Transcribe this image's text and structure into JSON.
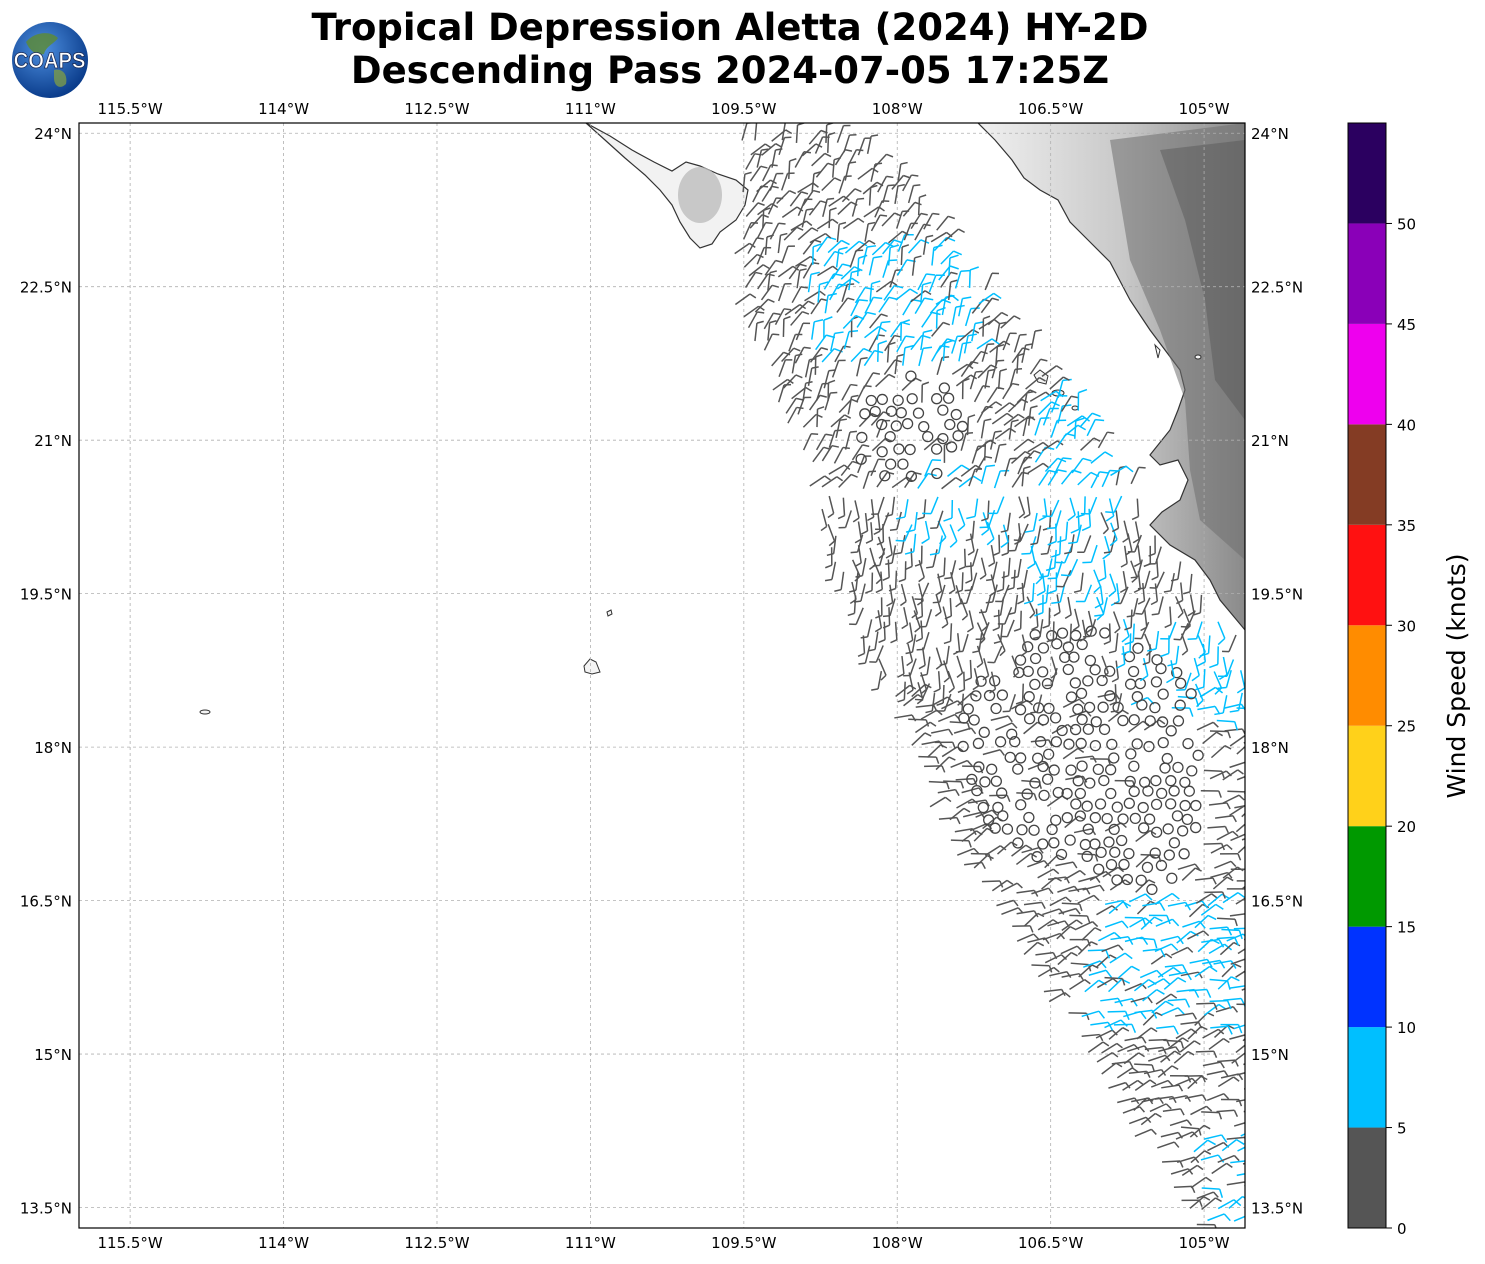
{
  "title_line1": "Tropical Depression Aletta (2024) HY-2D",
  "title_line2": "Descending Pass 2024-07-05 17:25Z",
  "logo_text": "COAPS",
  "chart_data": {
    "type": "wind-barb-map",
    "lon_range": [
      -116.0,
      -104.6
    ],
    "lat_range": [
      13.3,
      24.1
    ],
    "lon_ticks": [
      "115.5°W",
      "114°W",
      "112.5°W",
      "111°W",
      "109.5°W",
      "108°W",
      "106.5°W",
      "105°W"
    ],
    "lon_tick_values": [
      -115.5,
      -114.0,
      -112.5,
      -111.0,
      -109.5,
      -108.0,
      -106.5,
      -105.0
    ],
    "lat_ticks": [
      "24°N",
      "22.5°N",
      "21°N",
      "19.5°N",
      "18°N",
      "16.5°N",
      "15°N",
      "13.5°N"
    ],
    "lat_tick_values": [
      24.0,
      22.5,
      21.0,
      19.5,
      18.0,
      16.5,
      15.0,
      13.5
    ],
    "grid": true,
    "colorbar": {
      "label": "Wind Speed (knots)",
      "bounds": [
        0,
        5,
        10,
        15,
        20,
        25,
        30,
        35,
        40,
        45,
        50,
        55
      ],
      "tick_labels": [
        "0",
        "5",
        "10",
        "15",
        "20",
        "25",
        "30",
        "35",
        "40",
        "45",
        "50"
      ],
      "colors": [
        "#555555",
        "#00bfff",
        "#0033ff",
        "#009900",
        "#ffd11a",
        "#ff8c00",
        "#ff1111",
        "#843c24",
        "#ee00ee",
        "#8a00b8",
        "#2b0060"
      ]
    },
    "swath_lon_lat": [
      [
        -109.5,
        24.0
      ],
      [
        -108.3,
        24.0
      ],
      [
        -106.4,
        21.5
      ],
      [
        -104.6,
        19.0
      ],
      [
        -104.6,
        13.3
      ],
      [
        -105.1,
        13.3
      ],
      [
        -107.6,
        17.2
      ],
      [
        -109.6,
        22.4
      ]
    ],
    "wind_regions": [
      {
        "name": "central-gulf",
        "lon": [
          -108.9,
          -107.2
        ],
        "lat": [
          21.7,
          22.9
        ],
        "speed_class": "5-10"
      },
      {
        "name": "north-of-center",
        "lon": [
          -107.9,
          -106.9
        ],
        "lat": [
          20.0,
          20.7
        ],
        "speed_class": "5-10"
      },
      {
        "name": "coastal-east",
        "lon": [
          -106.7,
          -105.8
        ],
        "lat": [
          19.4,
          21.6
        ],
        "speed_class": "5-10"
      },
      {
        "name": "southeast-edge",
        "lon": [
          -105.8,
          -104.6
        ],
        "lat": [
          18.2,
          19.3
        ],
        "speed_class": "5-10"
      },
      {
        "name": "south",
        "lon": [
          -106.2,
          -104.7
        ],
        "lat": [
          15.2,
          16.5
        ],
        "speed_class": "5-10"
      },
      {
        "name": "far-south",
        "lon": [
          -105.1,
          -104.6
        ],
        "lat": [
          13.3,
          14.2
        ],
        "speed_class": "5-10"
      }
    ]
  }
}
